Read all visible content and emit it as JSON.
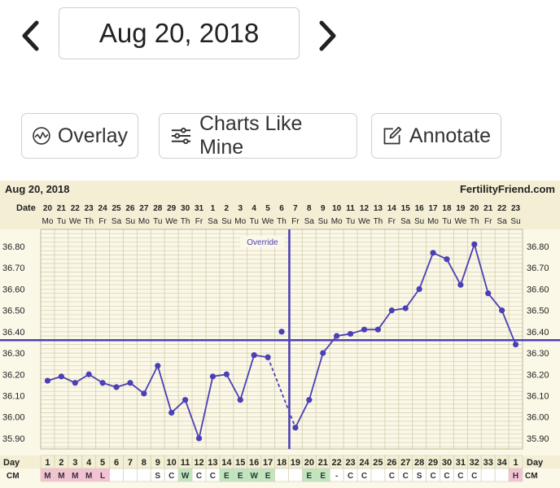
{
  "header": {
    "date": "Aug 20, 2018"
  },
  "toolbar": {
    "overlay_label": "Overlay",
    "charts_like_mine_label": "Charts Like Mine",
    "annotate_label": "Annotate"
  },
  "chart_data": {
    "type": "line",
    "date_label": "Aug 20, 2018",
    "brand": "FertilityFriend.com",
    "date_row_label": "Date",
    "day_row_label": "Day",
    "cm_row_label": "CM",
    "override_label": "Override",
    "dates": [
      "20",
      "21",
      "22",
      "23",
      "24",
      "25",
      "26",
      "27",
      "28",
      "29",
      "30",
      "31",
      "1",
      "2",
      "3",
      "4",
      "5",
      "6",
      "7",
      "8",
      "9",
      "10",
      "11",
      "12",
      "13",
      "14",
      "15",
      "16",
      "17",
      "18",
      "19",
      "20",
      "21",
      "22",
      "23"
    ],
    "weekdays": [
      "Mo",
      "Tu",
      "We",
      "Th",
      "Fr",
      "Sa",
      "Su",
      "Mo",
      "Tu",
      "We",
      "Th",
      "Fr",
      "Sa",
      "Su",
      "Mo",
      "Tu",
      "We",
      "Th",
      "Fr",
      "Sa",
      "Su",
      "Mo",
      "Tu",
      "We",
      "Th",
      "Fr",
      "Sa",
      "Su",
      "Mo",
      "Tu",
      "We",
      "Th",
      "Fr",
      "Sa",
      "Su"
    ],
    "days": [
      "1",
      "2",
      "3",
      "4",
      "5",
      "6",
      "7",
      "8",
      "9",
      "10",
      "11",
      "12",
      "13",
      "14",
      "15",
      "16",
      "17",
      "18",
      "19",
      "20",
      "21",
      "22",
      "23",
      "24",
      "25",
      "26",
      "27",
      "28",
      "29",
      "30",
      "31",
      "32",
      "33",
      "34",
      "1"
    ],
    "cm": [
      "M",
      "M",
      "M",
      "M",
      "L",
      "",
      "",
      "",
      "S",
      "C",
      "W",
      "C",
      "C",
      "E",
      "E",
      "W",
      "E",
      "",
      "",
      "E",
      "E",
      "-",
      "C",
      "C",
      "",
      "C",
      "C",
      "S",
      "C",
      "C",
      "C",
      "C",
      "",
      "",
      "H"
    ],
    "cm_colors": {
      "M": "#f3c2d4",
      "L": "#f3c2d4",
      "H": "#f3c2d4",
      "W": "#bfe6bf",
      "E": "#bfe6bf",
      "S": "#ffffff",
      "C": "#ffffff",
      "-": "#ffffff"
    },
    "temps": [
      36.17,
      36.19,
      36.16,
      36.2,
      36.16,
      36.14,
      36.16,
      36.11,
      36.24,
      36.02,
      36.08,
      35.9,
      36.19,
      36.2,
      36.08,
      36.29,
      36.28,
      36.4,
      35.95,
      36.08,
      36.3,
      36.38,
      36.39,
      36.41,
      36.41,
      36.5,
      36.51,
      36.6,
      36.77,
      36.74,
      36.62,
      36.81,
      36.58,
      36.5,
      36.34
    ],
    "override_day_index": 18,
    "excluded_day_index": 17,
    "coverline": 36.36,
    "ylim": [
      35.85,
      36.88
    ],
    "yticks": [
      35.9,
      36.0,
      36.1,
      36.2,
      36.3,
      36.4,
      36.5,
      36.6,
      36.7,
      36.8
    ],
    "grid": true,
    "colors": {
      "line": "#4b3fb5",
      "grid": "#d9d4b8",
      "background": "#fbf8e8",
      "header": "#f3eed4"
    }
  }
}
